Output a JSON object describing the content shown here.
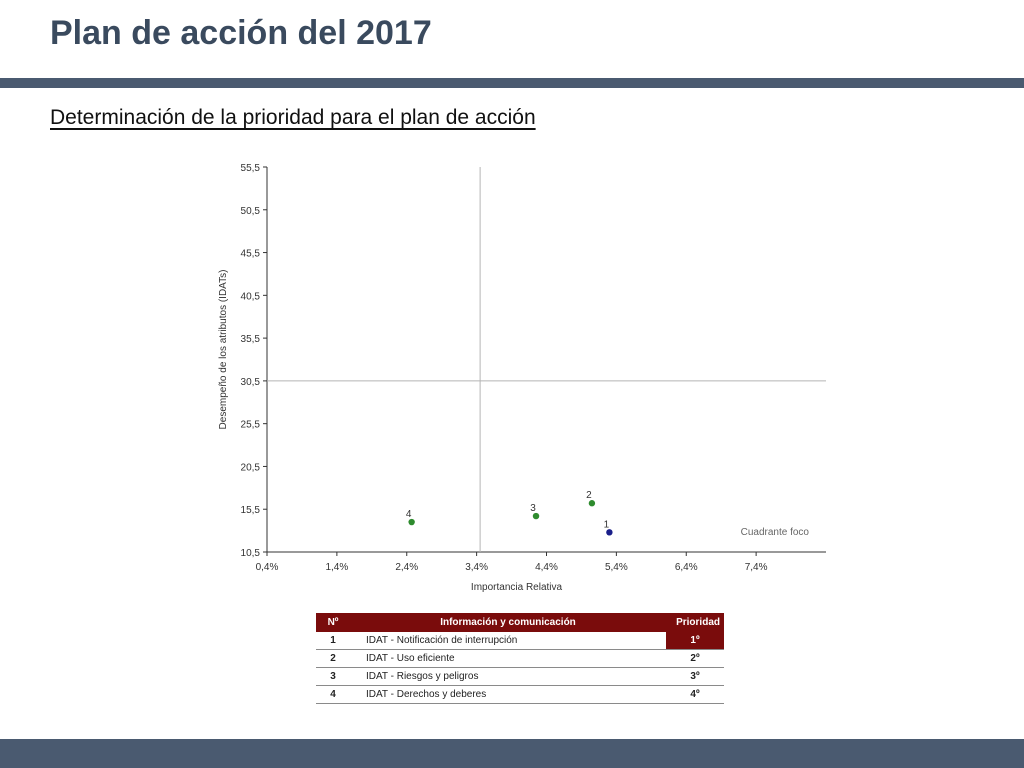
{
  "slide": {
    "title": "Plan de acción del 2017",
    "subtitle": "Determinación de la prioridad para el plan de acción"
  },
  "chart_data": {
    "type": "scatter",
    "xlabel": "Importancia Relativa",
    "ylabel": "Desempeño de los atributos (IDATs)",
    "xlim": [
      0.4,
      8.4
    ],
    "ylim": [
      10.5,
      55.5
    ],
    "x_ticks": [
      "0,4%",
      "1,4%",
      "2,4%",
      "3,4%",
      "4,4%",
      "5,4%",
      "6,4%",
      "7,4%"
    ],
    "y_ticks": [
      "10,5",
      "15,5",
      "20,5",
      "25,5",
      "30,5",
      "35,5",
      "40,5",
      "45,5",
      "50,5",
      "55,5"
    ],
    "reference_lines": {
      "x": 3.45,
      "y": 30.5
    },
    "quadrant_label": "Cuadrante foco",
    "points": [
      {
        "label": "1",
        "x": 5.3,
        "y": 12.8,
        "color": "#1a1f8a"
      },
      {
        "label": "2",
        "x": 5.05,
        "y": 16.2,
        "color": "#2e8b2e"
      },
      {
        "label": "3",
        "x": 4.25,
        "y": 14.7,
        "color": "#2e8b2e"
      },
      {
        "label": "4",
        "x": 2.47,
        "y": 14.0,
        "color": "#2e8b2e"
      }
    ],
    "grid": false
  },
  "table": {
    "headers": [
      "Nº",
      "Información y comunicación",
      "Prioridad"
    ],
    "rows": [
      {
        "num": "1",
        "info": "IDAT - Notificación de interrupción",
        "priority": "1º"
      },
      {
        "num": "2",
        "info": "IDAT - Uso eficiente",
        "priority": "2º"
      },
      {
        "num": "3",
        "info": "IDAT - Riesgos y peligros",
        "priority": "3º"
      },
      {
        "num": "4",
        "info": "IDAT - Derechos y deberes",
        "priority": "4º"
      }
    ]
  },
  "colors": {
    "header_bar": "#4a5a70",
    "table_header": "#7a0c0c"
  }
}
